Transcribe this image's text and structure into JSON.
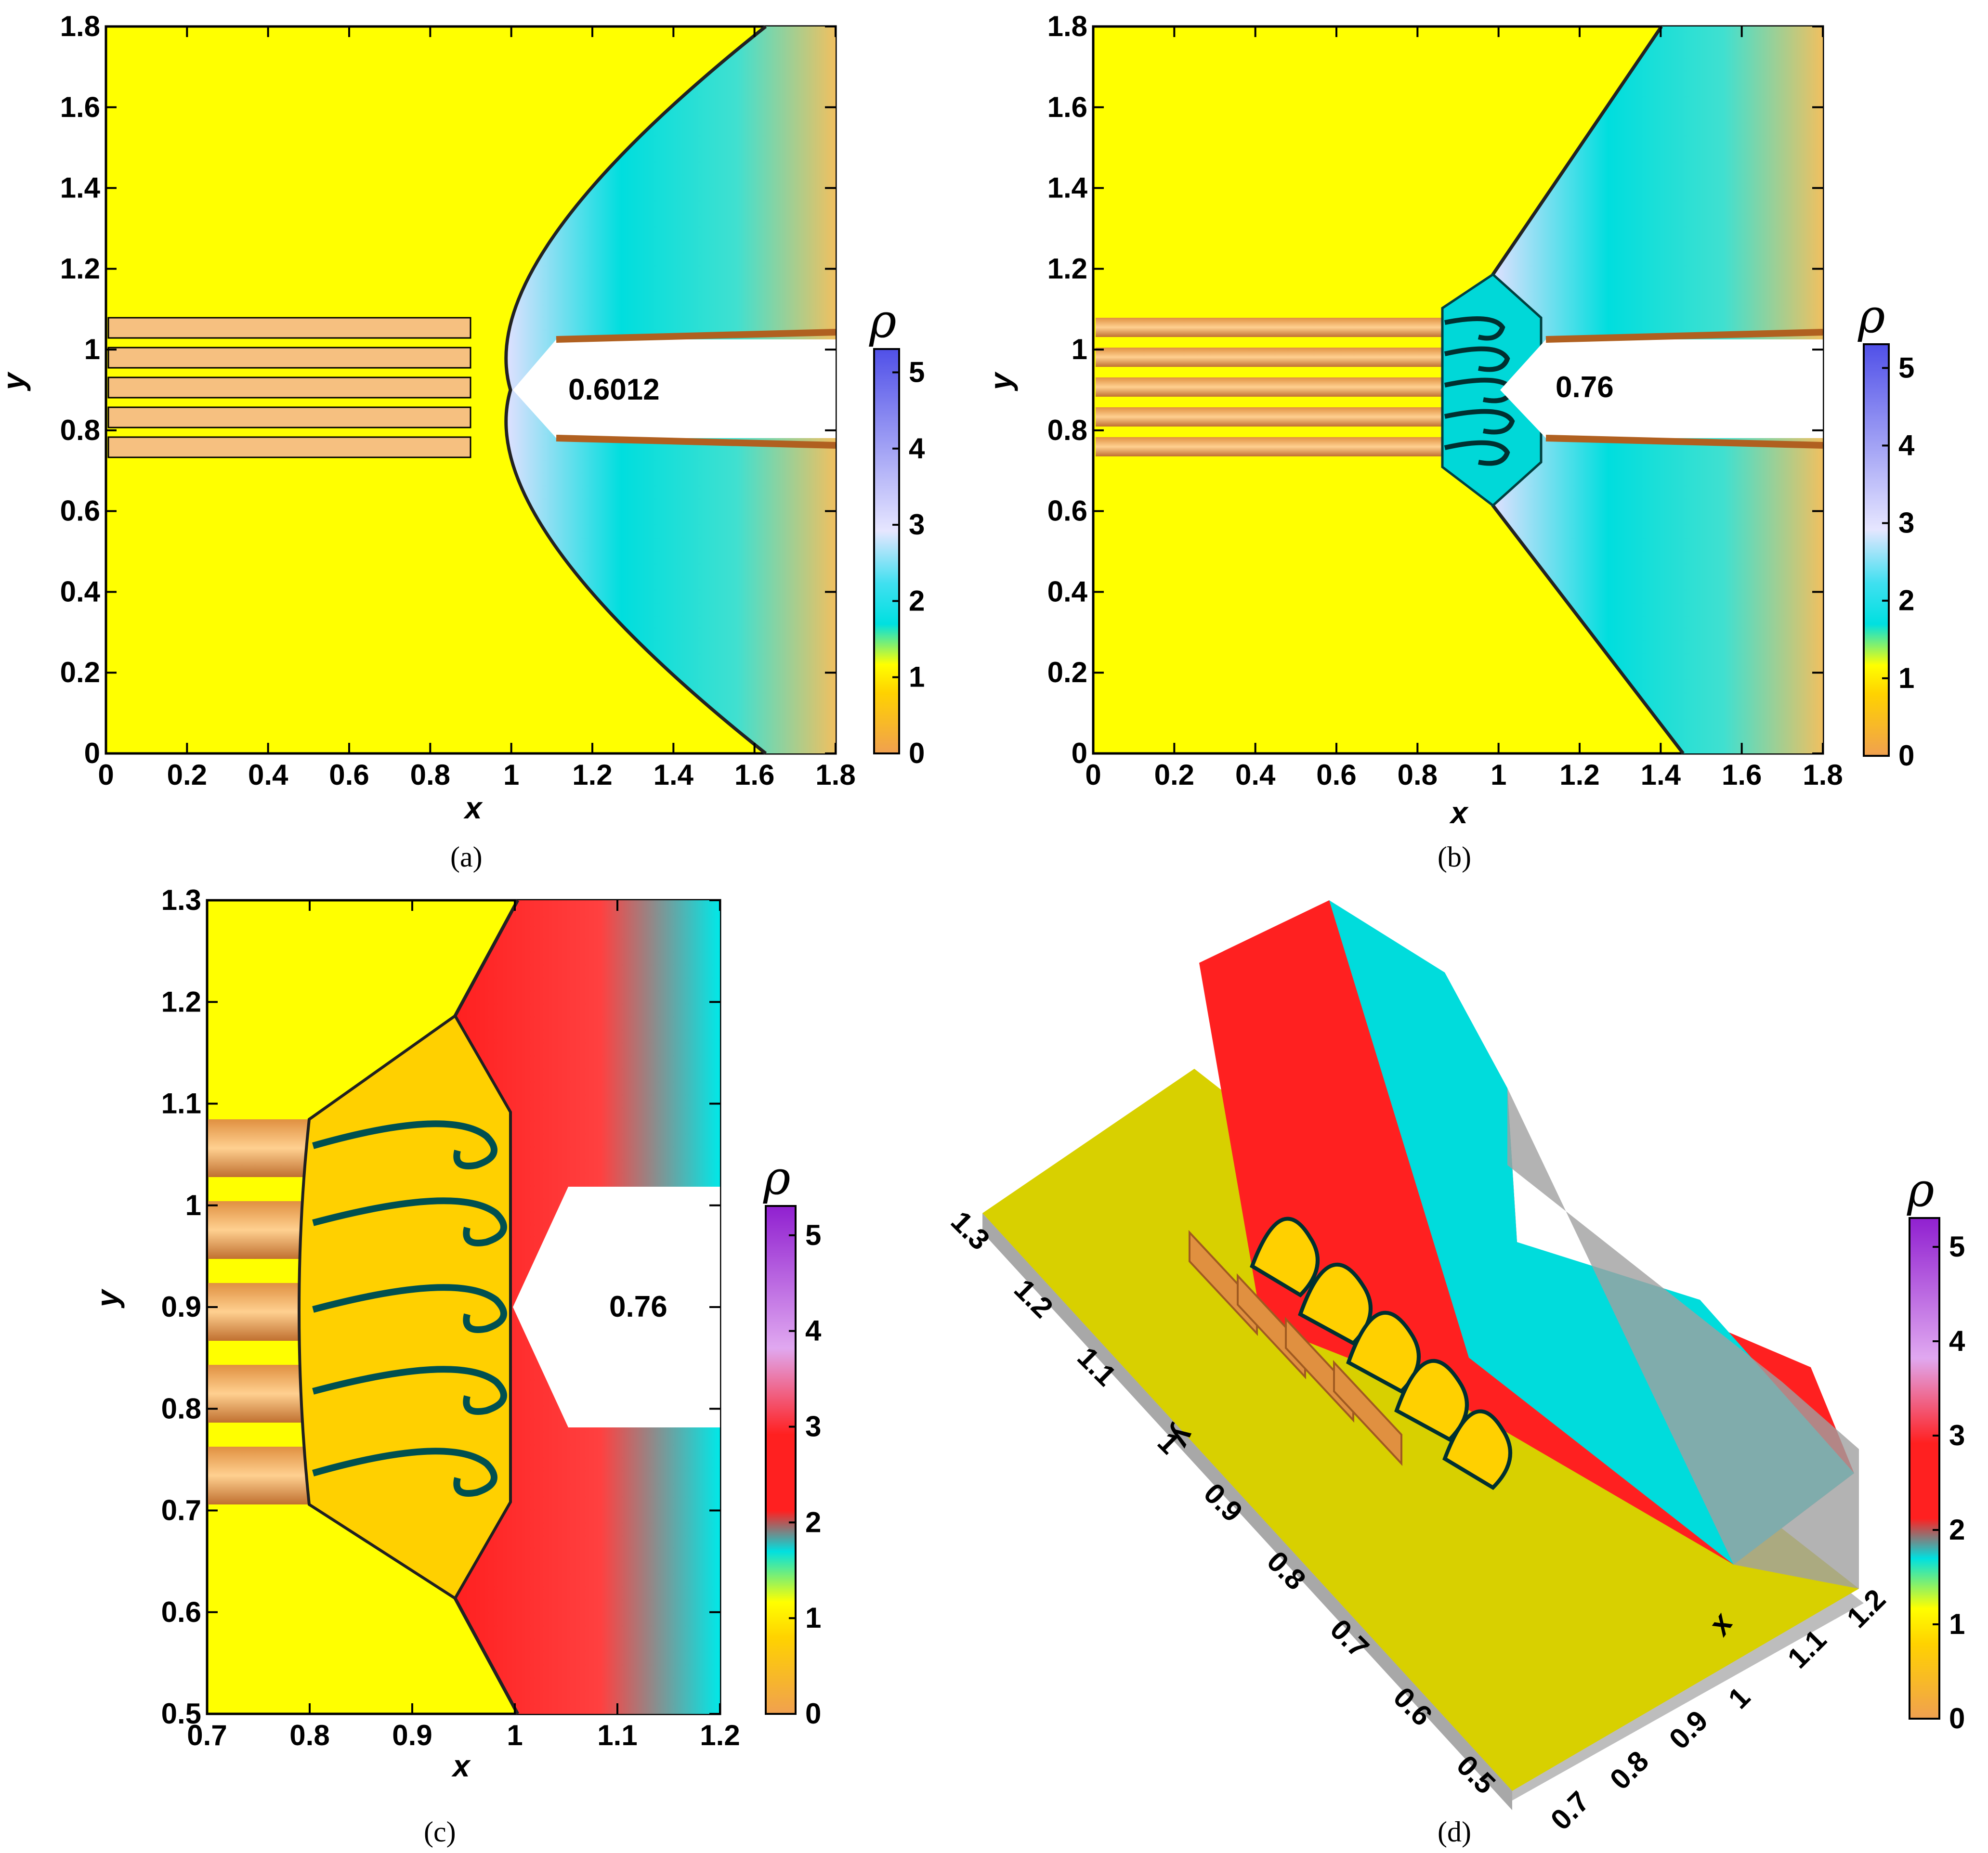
{
  "figure": {
    "panels": [
      {
        "id": "a",
        "caption": "(a)",
        "annotation": "0.6012",
        "xlabel": "x",
        "ylabel": "y",
        "colorbar_label": "ρ"
      },
      {
        "id": "b",
        "caption": "(b)",
        "annotation": "0.76",
        "xlabel": "x",
        "ylabel": "y",
        "colorbar_label": "ρ"
      },
      {
        "id": "c",
        "caption": "(c)",
        "annotation": "0.76",
        "xlabel": "x",
        "ylabel": "y",
        "colorbar_label": "ρ"
      },
      {
        "id": "d",
        "caption": "(d)",
        "xlabel": "x",
        "ylabel": "y",
        "colorbar_label": "ρ"
      }
    ]
  },
  "chart_data": [
    {
      "type": "heatmap",
      "panel": "a",
      "xlabel": "x",
      "ylabel": "y",
      "xlim": [
        0,
        1.8
      ],
      "ylim": [
        0,
        1.8
      ],
      "xticks": [
        "0",
        "0.2",
        "0.4",
        "0.6",
        "0.8",
        "1",
        "1.2",
        "1.4",
        "1.6",
        "1.8"
      ],
      "yticks": [
        "0",
        "0.2",
        "0.4",
        "0.6",
        "0.8",
        "1",
        "1.2",
        "1.4",
        "1.6",
        "1.8"
      ],
      "colorbar": {
        "label": "ρ",
        "range": [
          0,
          5
        ],
        "ticks": [
          "0",
          "1",
          "2",
          "3",
          "4",
          "5"
        ],
        "colors": [
          "#f0a050",
          "#ffff00",
          "#00e8e8",
          "#e6e6ff",
          "#5050e8"
        ]
      },
      "annotation": "0.6012"
    },
    {
      "type": "heatmap",
      "panel": "b",
      "xlabel": "x",
      "ylabel": "y",
      "xlim": [
        0,
        1.8
      ],
      "ylim": [
        0,
        1.8
      ],
      "xticks": [
        "0",
        "0.2",
        "0.4",
        "0.6",
        "0.8",
        "1",
        "1.2",
        "1.4",
        "1.6",
        "1.8"
      ],
      "yticks": [
        "0",
        "0.2",
        "0.4",
        "0.6",
        "0.8",
        "1",
        "1.2",
        "1.4",
        "1.6",
        "1.8"
      ],
      "colorbar": {
        "label": "ρ",
        "range": [
          0,
          5
        ],
        "ticks": [
          "0",
          "1",
          "2",
          "3",
          "4",
          "5"
        ],
        "colors": [
          "#f0a050",
          "#ffff00",
          "#00e8e8",
          "#e6e6ff",
          "#5050e8"
        ]
      },
      "annotation": "0.76"
    },
    {
      "type": "heatmap",
      "panel": "c",
      "xlabel": "x",
      "ylabel": "y",
      "xlim": [
        0.7,
        1.2
      ],
      "ylim": [
        0.5,
        1.3
      ],
      "xticks": [
        "0.7",
        "0.8",
        "0.9",
        "1",
        "1.1",
        "1.2"
      ],
      "yticks": [
        "0.5",
        "0.6",
        "0.7",
        "0.8",
        "0.9",
        "1",
        "1.1",
        "1.2",
        "1.3"
      ],
      "colorbar": {
        "label": "ρ",
        "range": [
          0,
          5
        ],
        "ticks": [
          "0",
          "1",
          "2",
          "3",
          "4",
          "5"
        ],
        "colors": [
          "#f0a050",
          "#ffff00",
          "#00e8e8",
          "#ff2020",
          "#e0a8f0",
          "#9020d0"
        ]
      },
      "annotation": "0.76"
    },
    {
      "type": "heatmap",
      "panel": "d",
      "xlabel": "x",
      "ylabel": "y",
      "xticks": [
        "0.7",
        "0.8",
        "0.9",
        "1",
        "1.1",
        "1.2"
      ],
      "yticks": [
        "0.5",
        "0.6",
        "0.7",
        "0.8",
        "0.9",
        "1",
        "1.1",
        "1.2",
        "1.3"
      ],
      "colorbar": {
        "label": "ρ",
        "range": [
          0,
          5
        ],
        "ticks": [
          "0",
          "1",
          "2",
          "3",
          "4",
          "5"
        ],
        "colors": [
          "#f0a050",
          "#ffff00",
          "#00e8e8",
          "#ff2020",
          "#e0a8f0",
          "#9020d0"
        ]
      }
    }
  ]
}
